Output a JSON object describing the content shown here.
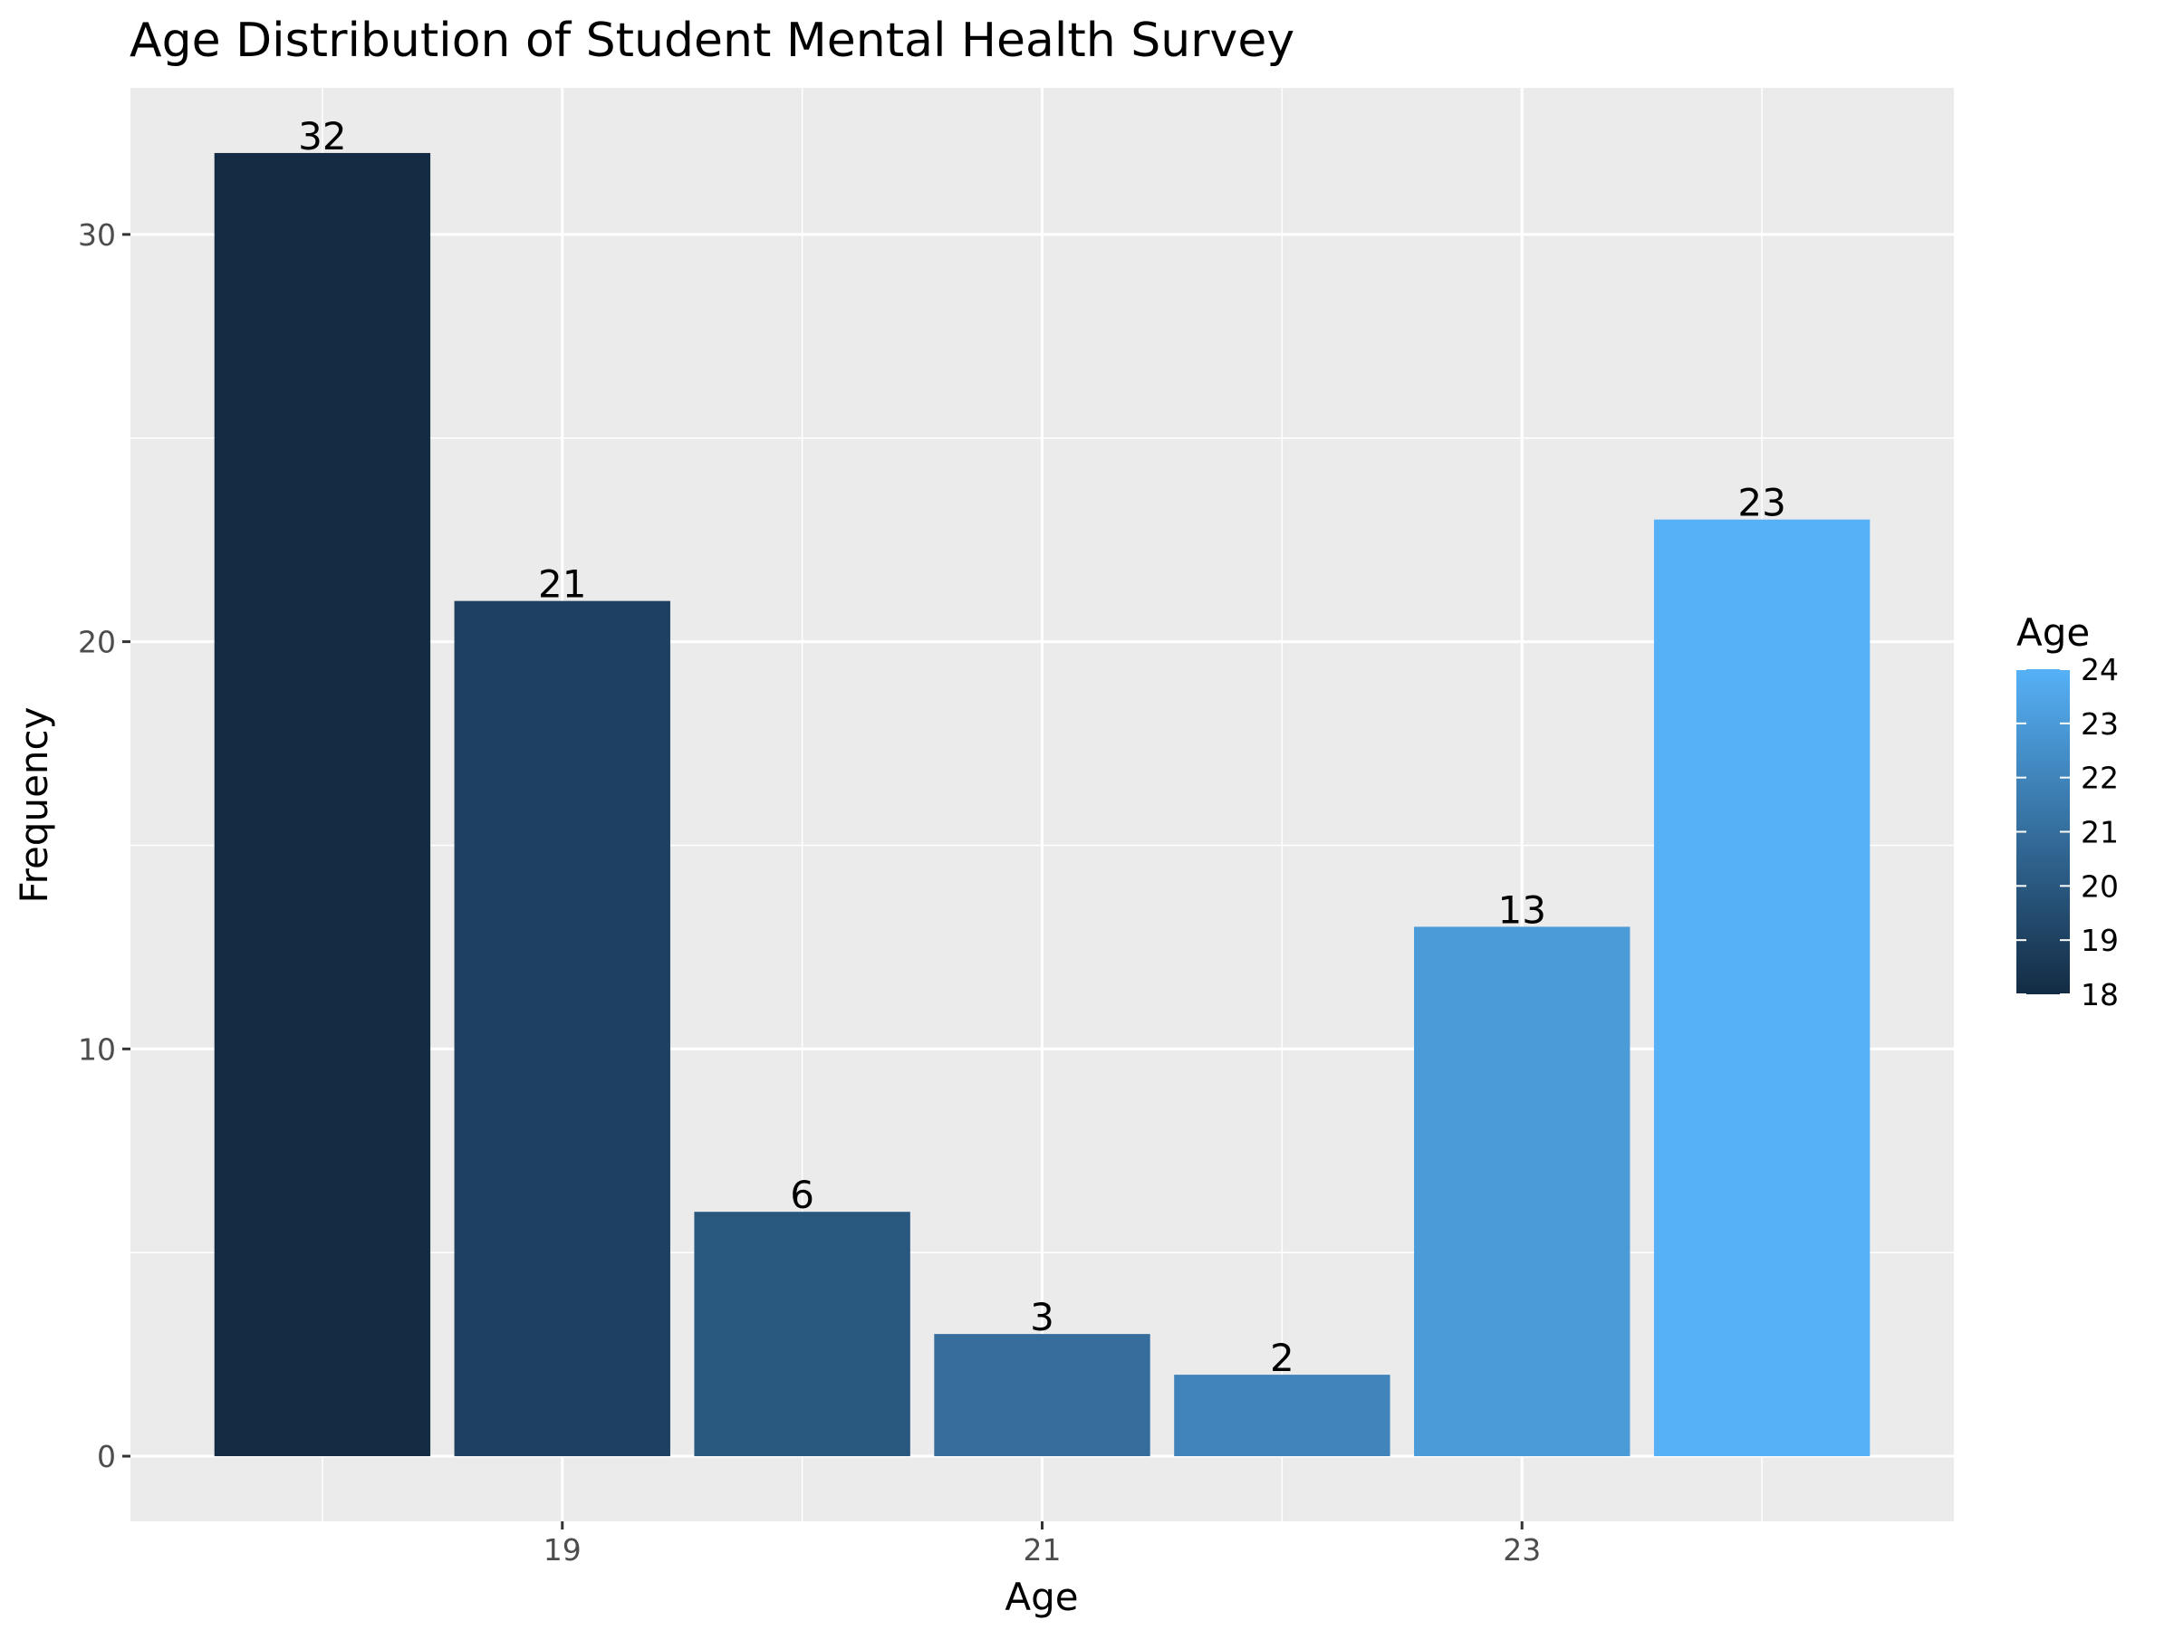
{
  "chart_data": {
    "type": "bar",
    "title": "Age Distribution of Student Mental Health Survey",
    "xlabel": "Age",
    "ylabel": "Frequency",
    "categories": [
      18,
      19,
      20,
      21,
      22,
      23,
      24
    ],
    "values": [
      32,
      21,
      6,
      3,
      2,
      13,
      23
    ],
    "data_labels": [
      "32",
      "21",
      "6",
      "3",
      "2",
      "13",
      "23"
    ],
    "xlim": [
      17.2,
      24.8
    ],
    "ylim": [
      -1.6,
      33.6
    ],
    "x_ticks": [
      19,
      21,
      23
    ],
    "x_tick_labels": [
      "19",
      "21",
      "23"
    ],
    "x_minor_ticks": [
      18,
      20,
      22,
      24
    ],
    "y_ticks": [
      0,
      10,
      20,
      30
    ],
    "y_tick_labels": [
      "0",
      "10",
      "20",
      "30"
    ],
    "y_minor_ticks": [
      5,
      15,
      25
    ],
    "grid": true,
    "panel_background": "#ebebeb",
    "fill_scale": {
      "low_color": "#132b43",
      "high_color": "#56b1f7",
      "range": [
        18,
        24
      ]
    },
    "legend": {
      "title": "Age",
      "placement": "right",
      "labels": [
        "24",
        "23",
        "22",
        "21",
        "20",
        "19",
        "18"
      ]
    }
  }
}
